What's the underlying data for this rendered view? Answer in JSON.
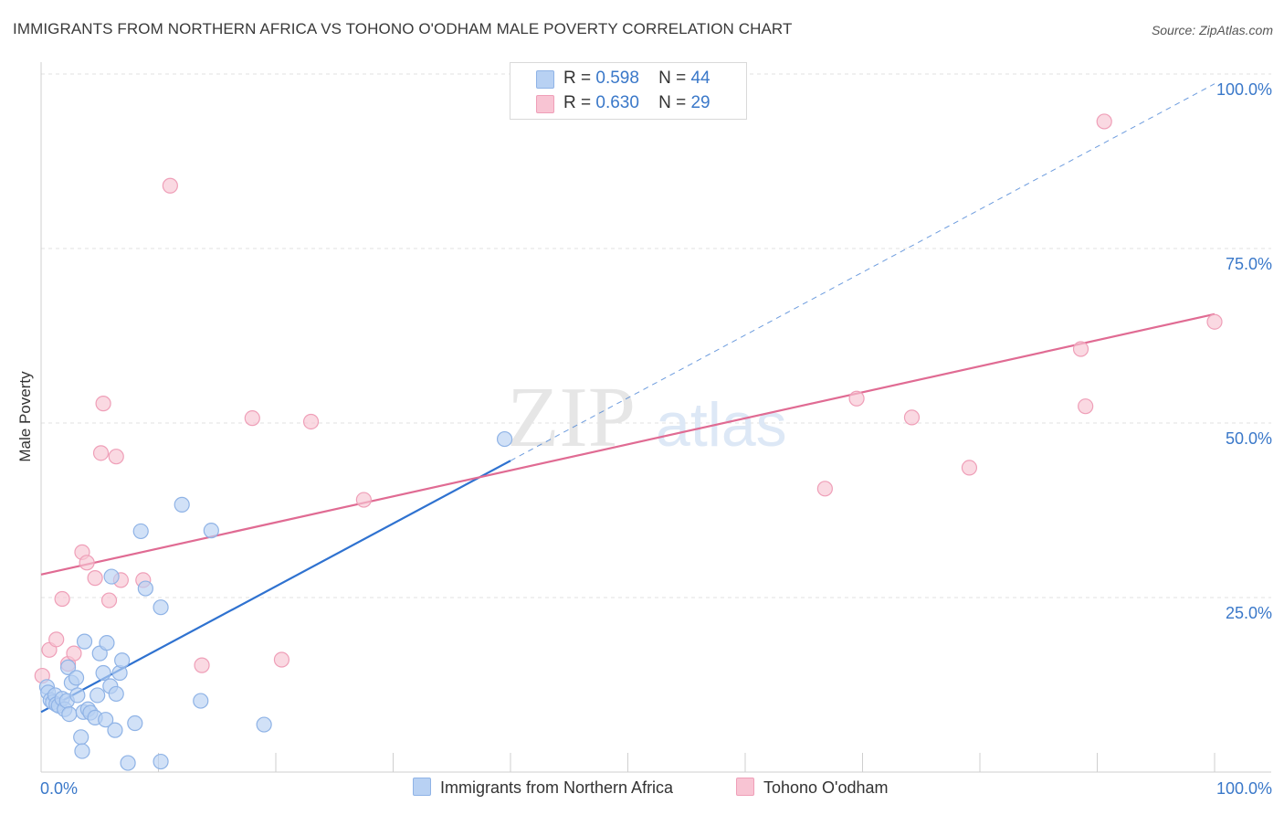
{
  "header": {
    "title": "IMMIGRANTS FROM NORTHERN AFRICA VS TOHONO O'ODHAM MALE POVERTY CORRELATION CHART",
    "source": "Source: ZipAtlas.com"
  },
  "legend_top": {
    "rows": [
      {
        "r_label": "R =",
        "r_value": "0.598",
        "n_label": "N =",
        "n_value": "44"
      },
      {
        "r_label": "R =",
        "r_value": "0.630",
        "n_label": "N =",
        "n_value": "29"
      }
    ]
  },
  "colors": {
    "blue_fill": "#b8d1f3",
    "blue_stroke": "#8fb3e6",
    "blue_line": "#2f72d0",
    "pink_fill": "#f8c4d3",
    "pink_stroke": "#ef9fb8",
    "pink_line": "#e06b93",
    "grid": "#e2e2e2",
    "tick_label": "#3a78c9"
  },
  "watermark": {
    "zip": "ZIP",
    "atlas": "atlas"
  },
  "chart_data": {
    "type": "scatter",
    "title": "IMMIGRANTS FROM NORTHERN AFRICA VS TOHONO O'ODHAM MALE POVERTY CORRELATION CHART",
    "xlabel": "",
    "ylabel": "Male Poverty",
    "xlim": [
      0,
      100
    ],
    "ylim": [
      0,
      100
    ],
    "x_tick_labels": [
      "0.0%",
      "100.0%"
    ],
    "y_ticks": [
      25,
      50,
      75,
      100
    ],
    "y_tick_labels": [
      "25.0%",
      "50.0%",
      "75.0%",
      "100.0%"
    ],
    "grid": true,
    "series": [
      {
        "name": "Immigrants from Northern Africa",
        "color": "blue",
        "points": [
          [
            0.5,
            12.2
          ],
          [
            0.6,
            11.4
          ],
          [
            0.8,
            10.3
          ],
          [
            1.0,
            10.0
          ],
          [
            1.2,
            11.0
          ],
          [
            1.3,
            9.7
          ],
          [
            1.5,
            9.5
          ],
          [
            1.8,
            10.5
          ],
          [
            2.0,
            9.0
          ],
          [
            2.2,
            10.2
          ],
          [
            2.4,
            8.3
          ],
          [
            2.3,
            15.0
          ],
          [
            2.6,
            12.8
          ],
          [
            3.0,
            13.5
          ],
          [
            3.1,
            11.0
          ],
          [
            3.4,
            5.0
          ],
          [
            3.5,
            3.0
          ],
          [
            3.6,
            8.6
          ],
          [
            3.7,
            18.7
          ],
          [
            4.0,
            9.0
          ],
          [
            4.2,
            8.5
          ],
          [
            4.6,
            7.8
          ],
          [
            4.8,
            11.0
          ],
          [
            5.0,
            17.0
          ],
          [
            5.3,
            14.2
          ],
          [
            5.5,
            7.5
          ],
          [
            5.6,
            18.5
          ],
          [
            5.9,
            12.3
          ],
          [
            6.0,
            28.0
          ],
          [
            6.3,
            6.0
          ],
          [
            6.4,
            11.2
          ],
          [
            6.7,
            14.2
          ],
          [
            6.9,
            16.0
          ],
          [
            7.4,
            1.3
          ],
          [
            8.0,
            7.0
          ],
          [
            8.5,
            34.5
          ],
          [
            8.9,
            26.3
          ],
          [
            10.2,
            1.5
          ],
          [
            10.2,
            23.6
          ],
          [
            12.0,
            38.3
          ],
          [
            13.6,
            10.2
          ],
          [
            14.5,
            34.6
          ],
          [
            19.0,
            6.8
          ],
          [
            39.5,
            47.7
          ]
        ],
        "trend": {
          "x_start": 0,
          "y_start": 8.6,
          "x_end_solid": 40,
          "y_end_solid": 44.6,
          "x_end_dashed": 100,
          "y_end_dashed": 98.6
        }
      },
      {
        "name": "Tohono O'odham",
        "color": "pink",
        "points": [
          [
            0.1,
            13.8
          ],
          [
            0.7,
            17.5
          ],
          [
            1.3,
            19.0
          ],
          [
            1.8,
            24.8
          ],
          [
            2.3,
            15.5
          ],
          [
            2.8,
            17.0
          ],
          [
            3.5,
            31.5
          ],
          [
            3.9,
            30.0
          ],
          [
            4.6,
            27.8
          ],
          [
            5.1,
            45.7
          ],
          [
            5.3,
            52.8
          ],
          [
            5.8,
            24.6
          ],
          [
            6.4,
            45.2
          ],
          [
            6.8,
            27.5
          ],
          [
            8.7,
            27.5
          ],
          [
            11.0,
            84.0
          ],
          [
            13.7,
            15.3
          ],
          [
            18.0,
            50.7
          ],
          [
            20.5,
            16.1
          ],
          [
            23.0,
            50.2
          ],
          [
            27.5,
            39.0
          ],
          [
            66.8,
            40.6
          ],
          [
            69.5,
            53.5
          ],
          [
            74.2,
            50.8
          ],
          [
            79.1,
            43.6
          ],
          [
            88.6,
            60.6
          ],
          [
            89.0,
            52.4
          ],
          [
            90.6,
            93.2
          ],
          [
            100.0,
            64.5
          ]
        ],
        "trend": {
          "x_start": 0,
          "y_start": 28.3,
          "x_end": 100,
          "y_end": 65.6
        }
      }
    ]
  }
}
